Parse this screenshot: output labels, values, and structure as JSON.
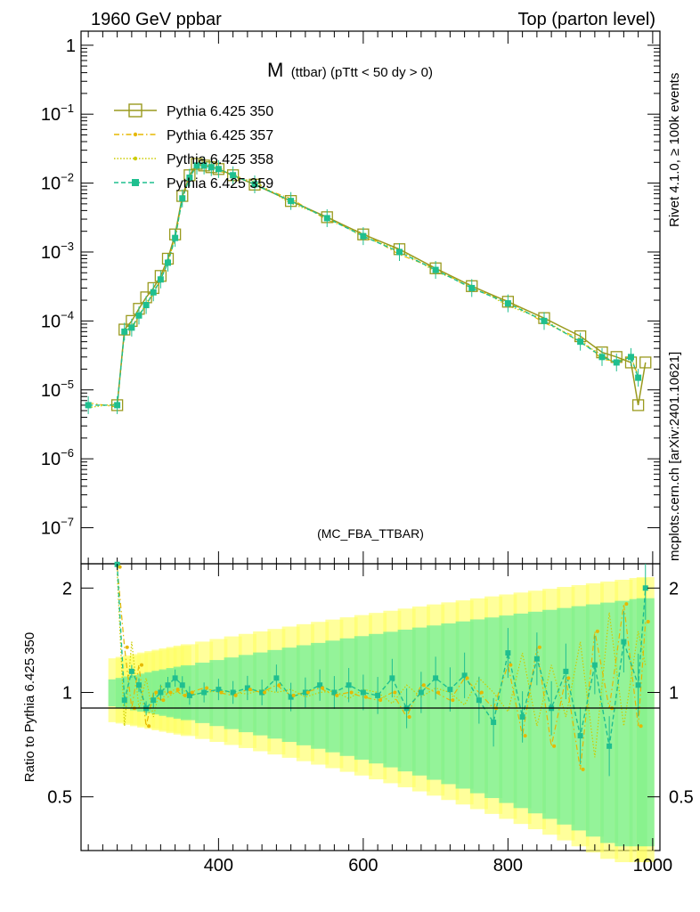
{
  "header": {
    "left": "1960 GeV ppbar",
    "right": "Top (parton level)"
  },
  "side_labels": {
    "rivet": "Rivet 4.1.0, ≥ 100k events",
    "mcplots": "mcplots.cern.ch [arXiv:2401.10621]"
  },
  "chart_data": {
    "type": "line",
    "title_main": "M",
    "title_sub": "(ttbar) (pTtt < 50 dy > 0)",
    "watermark": "(MC_FBA_TTBAR)",
    "xlabel": "",
    "ylabel": "",
    "xlim": [
      210,
      1010
    ],
    "ylim": [
      3e-08,
      1.6
    ],
    "log_y": true,
    "y_ticks": [
      {
        "value": 1,
        "label": "1"
      },
      {
        "value": 0.1,
        "base": "10",
        "exp": "−1"
      },
      {
        "value": 0.01,
        "base": "10",
        "exp": "−2"
      },
      {
        "value": 0.001,
        "base": "10",
        "exp": "−3"
      },
      {
        "value": 0.0001,
        "base": "10",
        "exp": "−4"
      },
      {
        "value": 1e-05,
        "base": "10",
        "exp": "−5"
      },
      {
        "value": 1e-06,
        "base": "10",
        "exp": "−6"
      },
      {
        "value": 1e-07,
        "base": "10",
        "exp": "−7"
      }
    ],
    "x_ticks": [
      400,
      600,
      800,
      1000
    ],
    "legend": [
      {
        "name": "Pythia 6.425 350",
        "color": "#9a9a1e",
        "style": "solid",
        "marker": "open-square"
      },
      {
        "name": "Pythia 6.425 357",
        "color": "#e6b800",
        "style": "dashdot",
        "marker": "dot"
      },
      {
        "name": "Pythia 6.425 358",
        "color": "#cccc00",
        "style": "dotted",
        "marker": "dot"
      },
      {
        "name": "Pythia 6.425 359",
        "color": "#1fbf8f",
        "style": "dashed",
        "marker": "filled-square"
      }
    ],
    "main_series_350": {
      "x": [
        260,
        270,
        280,
        290,
        300,
        310,
        320,
        330,
        340,
        350,
        360,
        370,
        380,
        390,
        400,
        420,
        450,
        500,
        550,
        600,
        650,
        700,
        750,
        800,
        850,
        900,
        930,
        950,
        970,
        980,
        990
      ],
      "y": [
        6e-06,
        7.5e-05,
        0.0001,
        0.00015,
        0.00022,
        0.0003,
        0.00045,
        0.0008,
        0.0018,
        0.0065,
        0.013,
        0.019,
        0.018,
        0.017,
        0.016,
        0.013,
        0.0095,
        0.0055,
        0.0032,
        0.0018,
        0.0011,
        0.00058,
        0.00032,
        0.00019,
        0.00011,
        6e-05,
        3.5e-05,
        3e-05,
        2.5e-05,
        6e-06,
        2.5e-05
      ]
    },
    "main_series_359": {
      "x": [
        220,
        260,
        270,
        280,
        290,
        300,
        310,
        320,
        330,
        340,
        350,
        360,
        370,
        380,
        390,
        400,
        420,
        450,
        500,
        550,
        600,
        650,
        700,
        750,
        800,
        850,
        900,
        930,
        950,
        970,
        980
      ],
      "y": [
        6e-06,
        6e-06,
        7e-05,
        8e-05,
        0.00012,
        0.00017,
        0.00026,
        0.0004,
        0.0007,
        0.0016,
        0.006,
        0.012,
        0.018,
        0.018,
        0.017,
        0.016,
        0.013,
        0.0096,
        0.0055,
        0.0031,
        0.0017,
        0.001,
        0.00055,
        0.0003,
        0.00018,
        0.0001,
        5e-05,
        3e-05,
        2.5e-05,
        3e-05,
        1.5e-05
      ]
    },
    "ratio": {
      "ylabel": "Ratio to Pythia 6.425 350",
      "ylim": [
        0.35,
        2.35
      ],
      "y_ticks": [
        0.5,
        1,
        2
      ],
      "ref_line": 1,
      "x": [
        260,
        270,
        280,
        290,
        300,
        310,
        320,
        330,
        340,
        350,
        360,
        380,
        400,
        420,
        440,
        460,
        480,
        500,
        520,
        540,
        560,
        580,
        600,
        620,
        640,
        660,
        680,
        700,
        720,
        740,
        760,
        780,
        800,
        820,
        840,
        860,
        880,
        900,
        920,
        940,
        960,
        980,
        990
      ],
      "series_359": [
        2.5,
        0.95,
        1.15,
        1.05,
        0.9,
        0.95,
        1.0,
        1.05,
        1.1,
        1.05,
        0.98,
        1.0,
        1.02,
        1.0,
        1.03,
        1.0,
        1.1,
        0.97,
        1.0,
        1.05,
        1.0,
        1.05,
        1.0,
        0.98,
        1.1,
        0.9,
        1.0,
        1.1,
        1.02,
        1.12,
        0.95,
        0.82,
        1.3,
        0.85,
        1.25,
        0.9,
        1.15,
        0.75,
        1.2,
        0.7,
        1.4,
        1.05,
        2.0
      ],
      "series_357": [
        2.3,
        1.35,
        0.9,
        1.2,
        0.8,
        1.0,
        0.95,
        1.0,
        1.02,
        0.98,
        1.0,
        1.03,
        1.0,
        0.98,
        1.02,
        1.0,
        1.05,
        0.98,
        1.0,
        1.03,
        0.98,
        1.0,
        0.97,
        0.95,
        1.0,
        0.85,
        1.05,
        1.0,
        0.95,
        1.1,
        1.0,
        0.9,
        1.2,
        0.75,
        1.35,
        0.7,
        1.1,
        0.6,
        1.5,
        0.9,
        1.8,
        0.8,
        1.6
      ],
      "series_358": [
        2.2,
        0.8,
        1.4,
        0.9,
        1.1,
        0.85,
        1.05,
        0.97,
        1.0,
        1.02,
        0.98,
        1.0,
        1.01,
        1.0,
        0.99,
        1.02,
        1.0,
        1.02,
        0.97,
        1.0,
        1.01,
        0.96,
        1.02,
        1.0,
        0.93,
        1.05,
        0.97,
        1.03,
        1.0,
        0.92,
        1.1,
        1.0,
        0.88,
        1.3,
        0.8,
        1.2,
        0.85,
        1.4,
        0.65,
        1.7,
        0.8,
        1.5,
        1.2
      ]
    }
  }
}
